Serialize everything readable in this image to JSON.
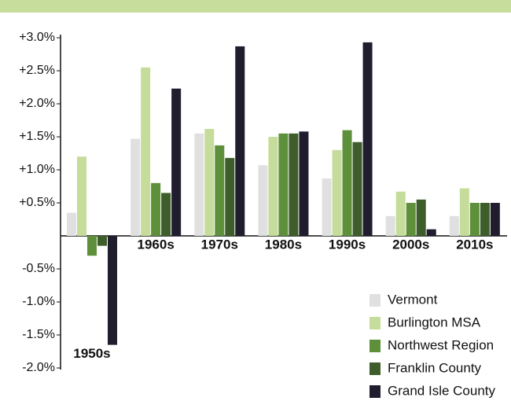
{
  "chart_data": {
    "type": "bar",
    "categories": [
      "1950s",
      "1960s",
      "1970s",
      "1980s",
      "1990s",
      "2000s",
      "2010s"
    ],
    "series": [
      {
        "name": "Vermont",
        "color": "#e0e0e0",
        "values": [
          0.35,
          1.47,
          1.55,
          1.07,
          0.87,
          0.3,
          0.3
        ]
      },
      {
        "name": "Burlington MSA",
        "color": "#c5dc9a",
        "values": [
          1.2,
          2.55,
          1.62,
          1.5,
          1.3,
          0.67,
          0.72
        ]
      },
      {
        "name": "Northwest Region",
        "color": "#5e8f3a",
        "values": [
          -0.3,
          0.8,
          1.37,
          1.55,
          1.6,
          0.5,
          0.5
        ]
      },
      {
        "name": "Franklin County",
        "color": "#3d5e2a",
        "values": [
          -0.15,
          0.65,
          1.18,
          1.55,
          1.42,
          0.55,
          0.5
        ]
      },
      {
        "name": "Grand Isle County",
        "color": "#1f1d2e",
        "values": [
          -1.65,
          2.23,
          2.87,
          1.58,
          2.93,
          0.1,
          0.5
        ]
      }
    ],
    "ylim": [
      -2.0,
      3.0
    ],
    "yticks": [
      {
        "value": -2.0,
        "label": "-2.0%"
      },
      {
        "value": -1.5,
        "label": "-1.5%"
      },
      {
        "value": -1.0,
        "label": "-1.0%"
      },
      {
        "value": -0.5,
        "label": "-0.5%"
      },
      {
        "value": 0.5,
        "label": "+0.5%"
      },
      {
        "value": 1.0,
        "label": "+1.0%"
      },
      {
        "value": 1.5,
        "label": "+1.5%"
      },
      {
        "value": 2.0,
        "label": "+2.0%"
      },
      {
        "value": 2.5,
        "label": "+2.5%"
      },
      {
        "value": 3.0,
        "label": "+3.0%"
      }
    ],
    "legend": "bottom-right"
  }
}
